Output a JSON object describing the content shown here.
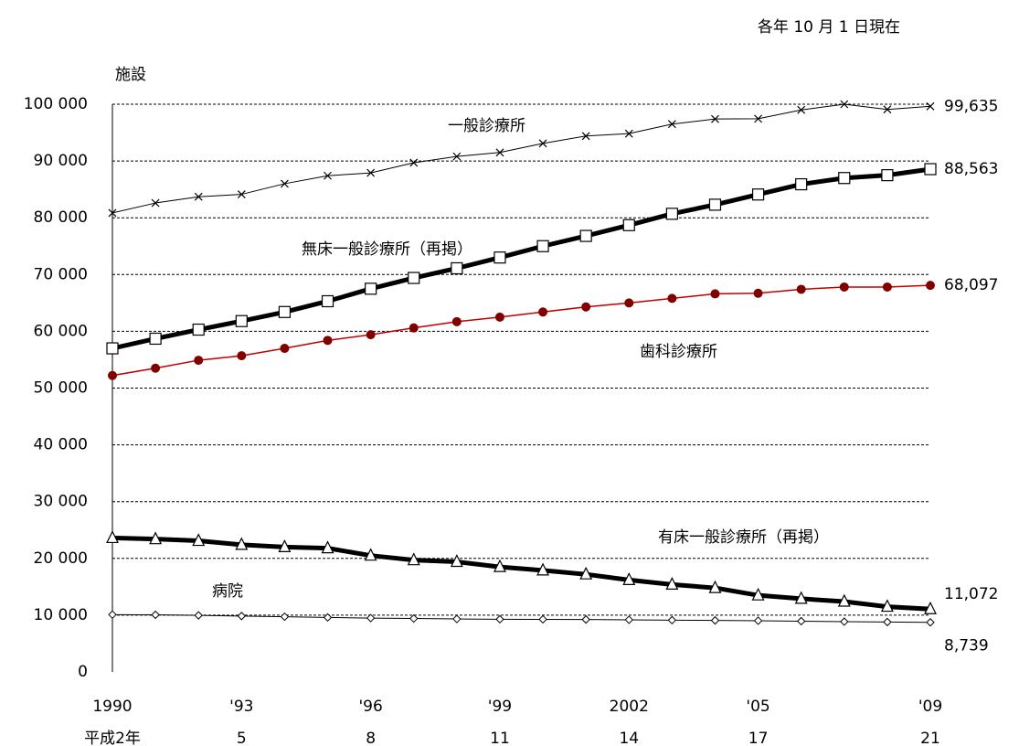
{
  "chart_data": {
    "type": "line",
    "note": "各年 10 月 1 日現在",
    "y_label": "施設",
    "categories": [
      "1990",
      null,
      null,
      "'93",
      null,
      null,
      "'96",
      null,
      null,
      "'99",
      null,
      null,
      "2002",
      null,
      null,
      "'05",
      null,
      null,
      null,
      "'09"
    ],
    "era_labels": [
      "平成2年",
      null,
      null,
      "5",
      null,
      null,
      "8",
      null,
      null,
      "11",
      null,
      null,
      "14",
      null,
      null,
      "17",
      null,
      null,
      null,
      "21"
    ],
    "ylim": [
      0,
      100000
    ],
    "yticks": [
      0,
      {
        "value": 10000,
        "label": "10 000"
      },
      {
        "value": 20000,
        "label": "20 000"
      },
      {
        "value": 30000,
        "label": "30 000"
      },
      {
        "value": 40000,
        "label": "40 000"
      },
      {
        "value": 50000,
        "label": "50 000"
      },
      {
        "value": 60000,
        "label": "60 000"
      },
      {
        "value": 70000,
        "label": "70 000"
      },
      {
        "value": 80000,
        "label": "80 000"
      },
      {
        "value": 90000,
        "label": "90 000"
      },
      {
        "value": 100000,
        "label": "100 000"
      }
    ],
    "grid": true,
    "series": [
      {
        "name": "一般診療所",
        "color": "#000000",
        "marker": "x",
        "line_width": 1,
        "values": [
          80852,
          82600,
          83700,
          84128,
          86000,
          87400,
          87909,
          89700,
          90800,
          91500,
          93100,
          94400,
          94819,
          96500,
          97400,
          97442,
          99000,
          100000,
          99083,
          99635
        ],
        "value_labels": [
          null,
          null,
          null,
          null,
          null,
          null,
          null,
          null,
          null,
          null,
          null,
          null,
          null,
          null,
          null,
          null,
          null,
          null,
          null,
          "99,635"
        ]
      },
      {
        "name": "無床一般診療所（再掲）",
        "color": "#000000",
        "marker": "square",
        "line_width": 5,
        "values": [
          57000,
          58700,
          60300,
          61800,
          63400,
          65300,
          67500,
          69400,
          71100,
          73000,
          75000,
          76800,
          78700,
          80700,
          82300,
          84100,
          85900,
          87000,
          87500,
          88563
        ],
        "value_labels": [
          null,
          null,
          null,
          null,
          null,
          null,
          null,
          null,
          null,
          null,
          null,
          null,
          null,
          null,
          null,
          null,
          null,
          null,
          null,
          "88,563"
        ]
      },
      {
        "name": "歯科診療所",
        "color": "#c00000",
        "marker": "circle",
        "line_width": 1.5,
        "values": [
          52216,
          53500,
          54900,
          55700,
          57000,
          58400,
          59400,
          60600,
          61700,
          62500,
          63400,
          64300,
          65000,
          65800,
          66600,
          66700,
          67400,
          67800,
          67800,
          68097
        ],
        "value_labels": [
          null,
          null,
          null,
          null,
          null,
          null,
          null,
          null,
          null,
          null,
          null,
          null,
          null,
          null,
          null,
          null,
          null,
          null,
          null,
          "68,097"
        ]
      },
      {
        "name": "有床一般診療所（再掲）",
        "color": "#000000",
        "marker": "triangle",
        "line_width": 5,
        "values": [
          23600,
          23400,
          23100,
          22400,
          22000,
          21800,
          20500,
          19700,
          19400,
          18500,
          17900,
          17200,
          16200,
          15400,
          14800,
          13500,
          12900,
          12400,
          11500,
          11072
        ],
        "value_labels": [
          null,
          null,
          null,
          null,
          null,
          null,
          null,
          null,
          null,
          null,
          null,
          null,
          null,
          null,
          null,
          null,
          null,
          null,
          null,
          "11,072"
        ]
      },
      {
        "name": "病院",
        "color": "#000000",
        "marker": "diamond",
        "line_width": 1,
        "values": [
          10096,
          10066,
          9963,
          9844,
          9731,
          9606,
          9490,
          9413,
          9333,
          9286,
          9266,
          9239,
          9187,
          9122,
          9077,
          9026,
          8943,
          8862,
          8794,
          8739
        ],
        "value_labels": [
          null,
          null,
          null,
          null,
          null,
          null,
          null,
          null,
          null,
          null,
          null,
          null,
          null,
          null,
          null,
          null,
          null,
          null,
          null,
          "8,739"
        ]
      }
    ]
  }
}
